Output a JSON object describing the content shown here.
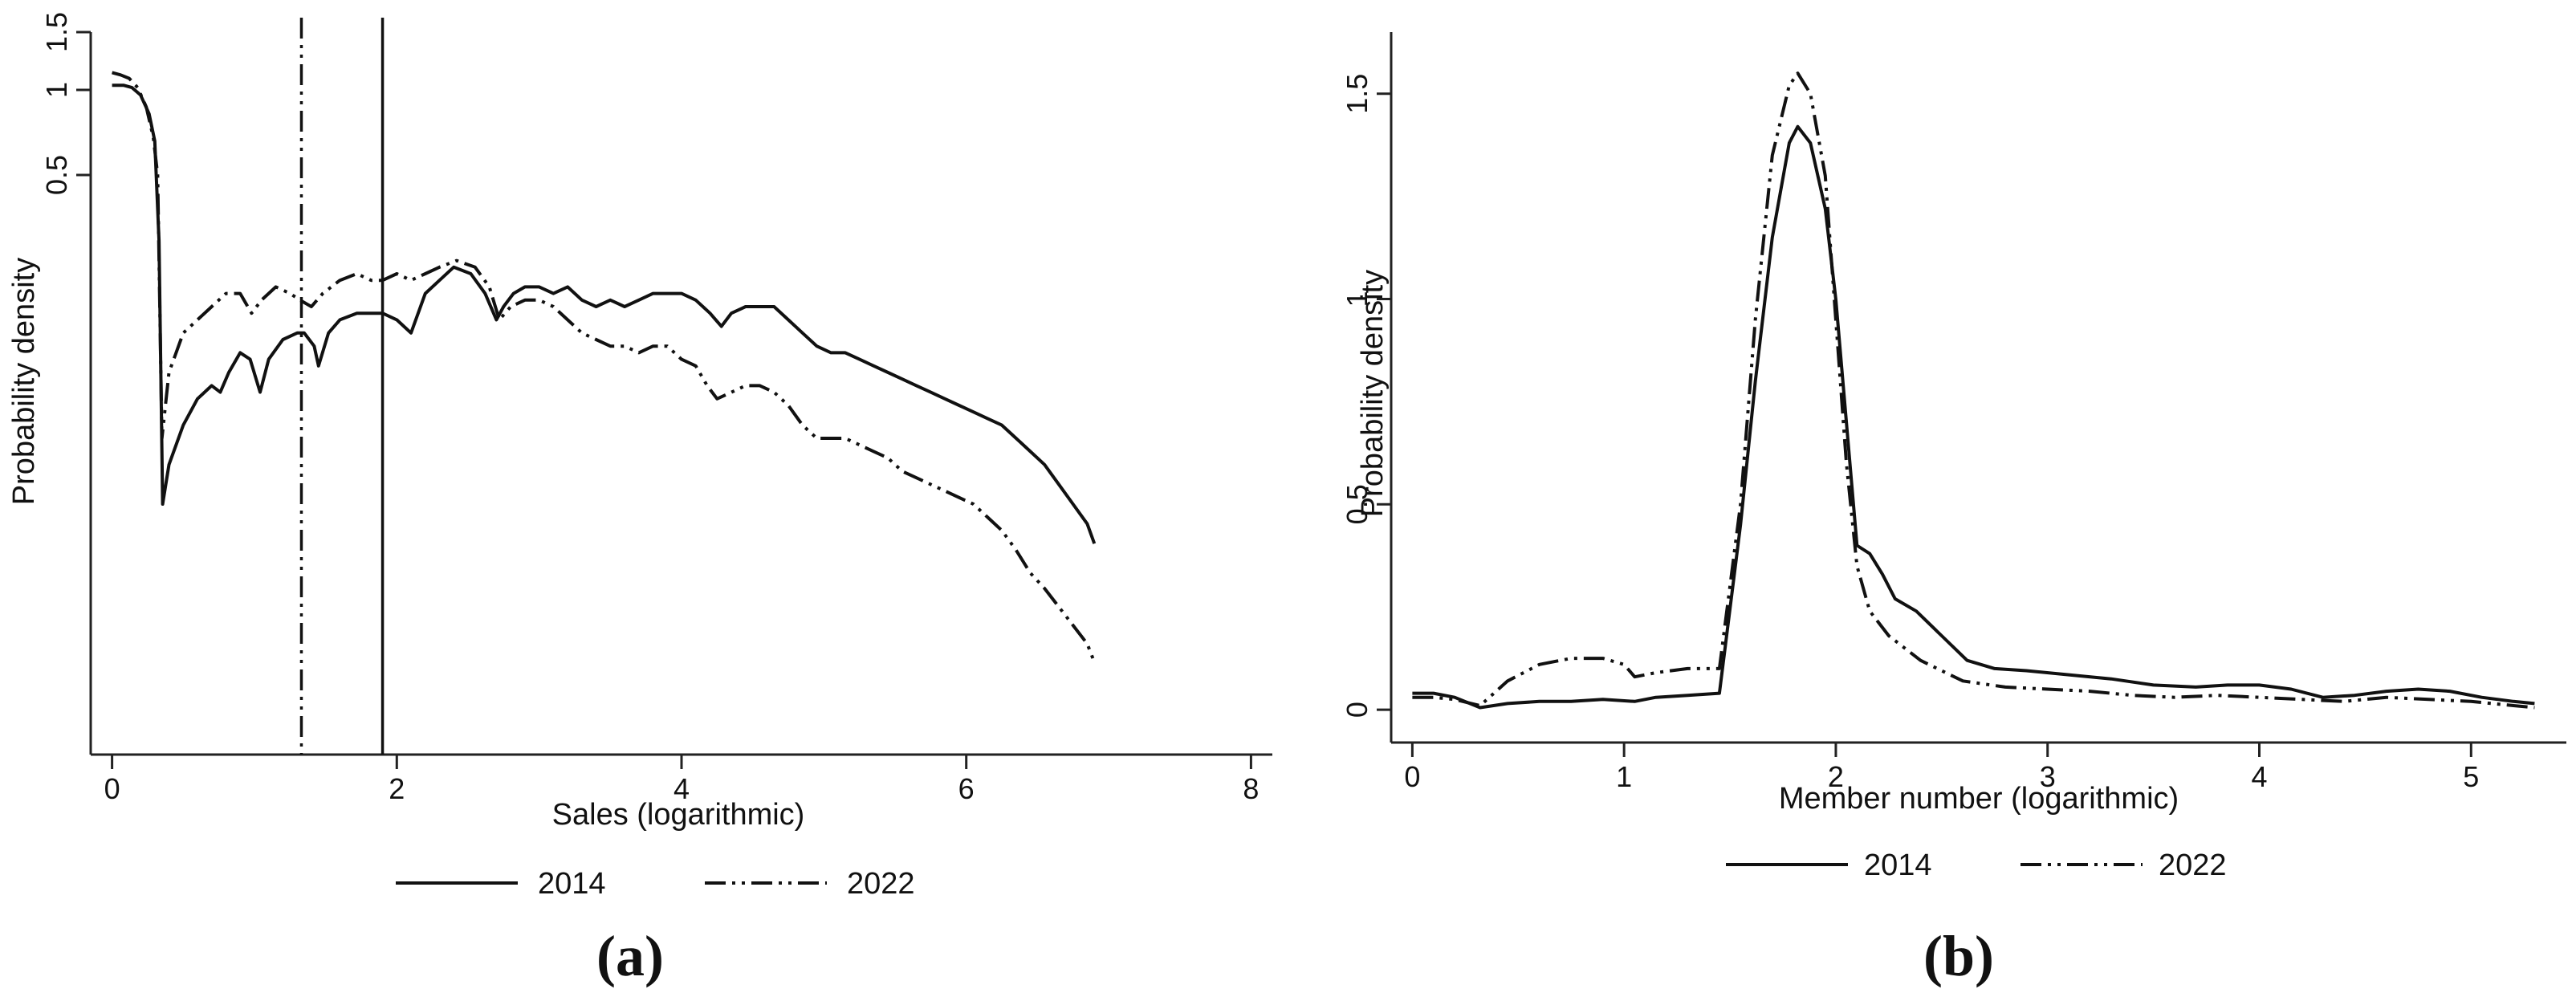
{
  "chart_data": [
    {
      "panel": "a",
      "type": "line",
      "panel_label": "(a)",
      "xlabel": "Sales (logarithmic)",
      "ylabel": "Probability density",
      "xlim": [
        -0.15,
        8.15
      ],
      "ylim": [
        -0.1,
        1.6
      ],
      "y_scale": "nonlinear",
      "x_ticks": [
        0,
        2,
        4,
        6,
        8
      ],
      "y_ticks": [
        0.5,
        1,
        1.5
      ],
      "legend_position": "bottom",
      "reference_lines": [
        {
          "x": 1.9,
          "style": "solid",
          "series": "2014"
        },
        {
          "x": 1.33,
          "style": "dash-dot",
          "series": "2022"
        }
      ],
      "series": [
        {
          "name": "2014",
          "style": "solid",
          "color": "#111111",
          "points": [
            [
              0,
              1.04
            ],
            [
              0.08,
              1.04
            ],
            [
              0.14,
              1.02
            ],
            [
              0.2,
              0.97
            ],
            [
              0.26,
              0.86
            ],
            [
              0.3,
              0.7
            ],
            [
              0.33,
              0.45
            ],
            [
              0.355,
              0.25
            ],
            [
              0.4,
              0.28
            ],
            [
              0.5,
              0.31
            ],
            [
              0.6,
              0.33
            ],
            [
              0.7,
              0.34
            ],
            [
              0.76,
              0.335
            ],
            [
              0.82,
              0.35
            ],
            [
              0.9,
              0.365
            ],
            [
              0.97,
              0.36
            ],
            [
              1.04,
              0.335
            ],
            [
              1.1,
              0.36
            ],
            [
              1.2,
              0.375
            ],
            [
              1.3,
              0.38
            ],
            [
              1.35,
              0.38
            ],
            [
              1.42,
              0.37
            ],
            [
              1.45,
              0.355
            ],
            [
              1.52,
              0.38
            ],
            [
              1.6,
              0.39
            ],
            [
              1.72,
              0.395
            ],
            [
              1.82,
              0.395
            ],
            [
              1.9,
              0.395
            ],
            [
              2.0,
              0.39
            ],
            [
              2.1,
              0.38
            ],
            [
              2.2,
              0.41
            ],
            [
              2.3,
              0.42
            ],
            [
              2.4,
              0.43
            ],
            [
              2.52,
              0.425
            ],
            [
              2.62,
              0.41
            ],
            [
              2.7,
              0.39
            ],
            [
              2.75,
              0.4
            ],
            [
              2.82,
              0.41
            ],
            [
              2.9,
              0.415
            ],
            [
              3.0,
              0.415
            ],
            [
              3.1,
              0.41
            ],
            [
              3.2,
              0.415
            ],
            [
              3.3,
              0.405
            ],
            [
              3.4,
              0.4
            ],
            [
              3.5,
              0.405
            ],
            [
              3.6,
              0.4
            ],
            [
              3.7,
              0.405
            ],
            [
              3.8,
              0.41
            ],
            [
              3.9,
              0.41
            ],
            [
              4.0,
              0.41
            ],
            [
              4.1,
              0.405
            ],
            [
              4.2,
              0.395
            ],
            [
              4.28,
              0.385
            ],
            [
              4.35,
              0.395
            ],
            [
              4.45,
              0.4
            ],
            [
              4.55,
              0.4
            ],
            [
              4.65,
              0.4
            ],
            [
              4.75,
              0.39
            ],
            [
              4.85,
              0.38
            ],
            [
              4.95,
              0.37
            ],
            [
              5.05,
              0.365
            ],
            [
              5.15,
              0.365
            ],
            [
              5.25,
              0.36
            ],
            [
              5.35,
              0.355
            ],
            [
              5.45,
              0.35
            ],
            [
              5.55,
              0.345
            ],
            [
              5.65,
              0.34
            ],
            [
              5.75,
              0.335
            ],
            [
              5.85,
              0.33
            ],
            [
              5.95,
              0.325
            ],
            [
              6.05,
              0.32
            ],
            [
              6.15,
              0.315
            ],
            [
              6.25,
              0.31
            ],
            [
              6.35,
              0.3
            ],
            [
              6.45,
              0.29
            ],
            [
              6.55,
              0.28
            ],
            [
              6.65,
              0.265
            ],
            [
              6.75,
              0.25
            ],
            [
              6.85,
              0.235
            ],
            [
              6.9,
              0.22
            ]
          ]
        },
        {
          "name": "2022",
          "style": "dash-dot",
          "color": "#111111",
          "points": [
            [
              0,
              1.15
            ],
            [
              0.06,
              1.13
            ],
            [
              0.12,
              1.1
            ],
            [
              0.18,
              1.02
            ],
            [
              0.24,
              0.9
            ],
            [
              0.29,
              0.72
            ],
            [
              0.32,
              0.5
            ],
            [
              0.35,
              0.3
            ],
            [
              0.4,
              0.35
            ],
            [
              0.5,
              0.38
            ],
            [
              0.6,
              0.39
            ],
            [
              0.7,
              0.4
            ],
            [
              0.8,
              0.41
            ],
            [
              0.9,
              0.41
            ],
            [
              0.98,
              0.395
            ],
            [
              1.05,
              0.405
            ],
            [
              1.15,
              0.415
            ],
            [
              1.25,
              0.41
            ],
            [
              1.32,
              0.405
            ],
            [
              1.4,
              0.4
            ],
            [
              1.48,
              0.41
            ],
            [
              1.6,
              0.42
            ],
            [
              1.72,
              0.425
            ],
            [
              1.82,
              0.42
            ],
            [
              1.9,
              0.42
            ],
            [
              2.0,
              0.425
            ],
            [
              2.1,
              0.42
            ],
            [
              2.2,
              0.425
            ],
            [
              2.3,
              0.43
            ],
            [
              2.42,
              0.435
            ],
            [
              2.55,
              0.43
            ],
            [
              2.65,
              0.415
            ],
            [
              2.72,
              0.39
            ],
            [
              2.8,
              0.4
            ],
            [
              2.9,
              0.405
            ],
            [
              3.0,
              0.405
            ],
            [
              3.1,
              0.4
            ],
            [
              3.2,
              0.39
            ],
            [
              3.3,
              0.38
            ],
            [
              3.4,
              0.375
            ],
            [
              3.5,
              0.37
            ],
            [
              3.6,
              0.37
            ],
            [
              3.7,
              0.365
            ],
            [
              3.8,
              0.37
            ],
            [
              3.9,
              0.37
            ],
            [
              4.0,
              0.36
            ],
            [
              4.1,
              0.355
            ],
            [
              4.18,
              0.34
            ],
            [
              4.25,
              0.33
            ],
            [
              4.35,
              0.335
            ],
            [
              4.45,
              0.34
            ],
            [
              4.55,
              0.34
            ],
            [
              4.65,
              0.335
            ],
            [
              4.75,
              0.325
            ],
            [
              4.85,
              0.31
            ],
            [
              4.95,
              0.3
            ],
            [
              5.05,
              0.3
            ],
            [
              5.15,
              0.3
            ],
            [
              5.25,
              0.295
            ],
            [
              5.35,
              0.29
            ],
            [
              5.45,
              0.285
            ],
            [
              5.55,
              0.275
            ],
            [
              5.65,
              0.27
            ],
            [
              5.75,
              0.265
            ],
            [
              5.85,
              0.26
            ],
            [
              5.95,
              0.255
            ],
            [
              6.05,
              0.25
            ],
            [
              6.15,
              0.24
            ],
            [
              6.25,
              0.23
            ],
            [
              6.35,
              0.215
            ],
            [
              6.45,
              0.195
            ],
            [
              6.55,
              0.17
            ],
            [
              6.65,
              0.14
            ],
            [
              6.75,
              0.11
            ],
            [
              6.85,
              0.08
            ],
            [
              6.9,
              0.05
            ]
          ]
        }
      ]
    },
    {
      "panel": "b",
      "type": "line",
      "panel_label": "(b)",
      "xlabel": "Member number (logarithmic)",
      "ylabel": "Probability density",
      "xlim": [
        -0.1,
        5.45
      ],
      "ylim": [
        -0.08,
        1.65
      ],
      "x_ticks": [
        0,
        1,
        2,
        3,
        4,
        5
      ],
      "y_ticks": [
        0,
        0.5,
        1,
        1.5
      ],
      "legend_position": "bottom",
      "series": [
        {
          "name": "2014",
          "style": "solid",
          "color": "#111111",
          "points": [
            [
              0,
              0.04
            ],
            [
              0.1,
              0.04
            ],
            [
              0.2,
              0.03
            ],
            [
              0.32,
              0.005
            ],
            [
              0.45,
              0.015
            ],
            [
              0.6,
              0.02
            ],
            [
              0.75,
              0.02
            ],
            [
              0.9,
              0.025
            ],
            [
              1.05,
              0.02
            ],
            [
              1.15,
              0.03
            ],
            [
              1.3,
              0.035
            ],
            [
              1.45,
              0.04
            ],
            [
              1.55,
              0.45
            ],
            [
              1.62,
              0.8
            ],
            [
              1.7,
              1.15
            ],
            [
              1.78,
              1.38
            ],
            [
              1.82,
              1.42
            ],
            [
              1.88,
              1.38
            ],
            [
              1.95,
              1.22
            ],
            [
              2.0,
              1.0
            ],
            [
              2.05,
              0.7
            ],
            [
              2.1,
              0.4
            ],
            [
              2.16,
              0.38
            ],
            [
              2.22,
              0.33
            ],
            [
              2.28,
              0.27
            ],
            [
              2.38,
              0.24
            ],
            [
              2.5,
              0.18
            ],
            [
              2.62,
              0.12
            ],
            [
              2.75,
              0.1
            ],
            [
              2.9,
              0.095
            ],
            [
              3.1,
              0.085
            ],
            [
              3.3,
              0.075
            ],
            [
              3.5,
              0.06
            ],
            [
              3.7,
              0.055
            ],
            [
              3.85,
              0.06
            ],
            [
              4.0,
              0.06
            ],
            [
              4.15,
              0.05
            ],
            [
              4.3,
              0.03
            ],
            [
              4.45,
              0.035
            ],
            [
              4.6,
              0.045
            ],
            [
              4.75,
              0.05
            ],
            [
              4.9,
              0.045
            ],
            [
              5.05,
              0.03
            ],
            [
              5.2,
              0.02
            ],
            [
              5.3,
              0.015
            ]
          ]
        },
        {
          "name": "2022",
          "style": "dash-dot",
          "color": "#111111",
          "points": [
            [
              0,
              0.03
            ],
            [
              0.1,
              0.03
            ],
            [
              0.2,
              0.025
            ],
            [
              0.32,
              0.01
            ],
            [
              0.45,
              0.07
            ],
            [
              0.6,
              0.11
            ],
            [
              0.75,
              0.125
            ],
            [
              0.9,
              0.125
            ],
            [
              1.0,
              0.11
            ],
            [
              1.05,
              0.08
            ],
            [
              1.15,
              0.09
            ],
            [
              1.3,
              0.1
            ],
            [
              1.45,
              0.1
            ],
            [
              1.55,
              0.5
            ],
            [
              1.62,
              0.95
            ],
            [
              1.7,
              1.35
            ],
            [
              1.78,
              1.52
            ],
            [
              1.82,
              1.55
            ],
            [
              1.88,
              1.5
            ],
            [
              1.95,
              1.3
            ],
            [
              2.0,
              0.95
            ],
            [
              2.05,
              0.6
            ],
            [
              2.1,
              0.35
            ],
            [
              2.16,
              0.24
            ],
            [
              2.25,
              0.18
            ],
            [
              2.4,
              0.12
            ],
            [
              2.6,
              0.07
            ],
            [
              2.8,
              0.055
            ],
            [
              3.0,
              0.05
            ],
            [
              3.2,
              0.045
            ],
            [
              3.4,
              0.035
            ],
            [
              3.6,
              0.03
            ],
            [
              3.8,
              0.035
            ],
            [
              4.0,
              0.03
            ],
            [
              4.2,
              0.025
            ],
            [
              4.4,
              0.02
            ],
            [
              4.6,
              0.03
            ],
            [
              4.8,
              0.025
            ],
            [
              5.0,
              0.02
            ],
            [
              5.2,
              0.01
            ],
            [
              5.3,
              0.005
            ]
          ]
        }
      ]
    }
  ]
}
